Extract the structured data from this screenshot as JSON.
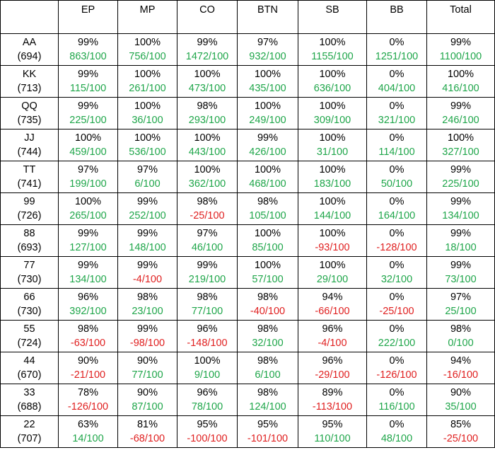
{
  "columns": [
    "",
    "EP",
    "MP",
    "CO",
    "BTN",
    "SB",
    "BB",
    "Total"
  ],
  "colors": {
    "positive": "#1fa64a",
    "negative": "#e02020",
    "text": "#000000"
  },
  "rows": [
    {
      "hand": "AA",
      "count": "(694)",
      "cells": [
        {
          "pct": "99%",
          "val": "863/100"
        },
        {
          "pct": "100%",
          "val": "756/100"
        },
        {
          "pct": "99%",
          "val": "1472/100"
        },
        {
          "pct": "97%",
          "val": "932/100"
        },
        {
          "pct": "100%",
          "val": "1155/100"
        },
        {
          "pct": "0%",
          "val": "1251/100"
        },
        {
          "pct": "99%",
          "val": "1100/100"
        }
      ]
    },
    {
      "hand": "KK",
      "count": "(713)",
      "cells": [
        {
          "pct": "99%",
          "val": "115/100"
        },
        {
          "pct": "100%",
          "val": "261/100"
        },
        {
          "pct": "100%",
          "val": "473/100"
        },
        {
          "pct": "100%",
          "val": "435/100"
        },
        {
          "pct": "100%",
          "val": "636/100"
        },
        {
          "pct": "0%",
          "val": "404/100"
        },
        {
          "pct": "100%",
          "val": "416/100"
        }
      ]
    },
    {
      "hand": "QQ",
      "count": "(735)",
      "cells": [
        {
          "pct": "99%",
          "val": "225/100"
        },
        {
          "pct": "100%",
          "val": "36/100"
        },
        {
          "pct": "98%",
          "val": "293/100"
        },
        {
          "pct": "100%",
          "val": "249/100"
        },
        {
          "pct": "100%",
          "val": "309/100"
        },
        {
          "pct": "0%",
          "val": "321/100"
        },
        {
          "pct": "99%",
          "val": "246/100"
        }
      ]
    },
    {
      "hand": "JJ",
      "count": "(744)",
      "cells": [
        {
          "pct": "100%",
          "val": "459/100"
        },
        {
          "pct": "100%",
          "val": "536/100"
        },
        {
          "pct": "100%",
          "val": "443/100"
        },
        {
          "pct": "99%",
          "val": "426/100"
        },
        {
          "pct": "100%",
          "val": "31/100"
        },
        {
          "pct": "0%",
          "val": "114/100"
        },
        {
          "pct": "100%",
          "val": "327/100"
        }
      ]
    },
    {
      "hand": "TT",
      "count": "(741)",
      "cells": [
        {
          "pct": "97%",
          "val": "199/100"
        },
        {
          "pct": "97%",
          "val": "6/100"
        },
        {
          "pct": "100%",
          "val": "362/100"
        },
        {
          "pct": "100%",
          "val": "468/100"
        },
        {
          "pct": "100%",
          "val": "183/100"
        },
        {
          "pct": "0%",
          "val": "50/100"
        },
        {
          "pct": "99%",
          "val": "225/100"
        }
      ]
    },
    {
      "hand": "99",
      "count": "(726)",
      "cells": [
        {
          "pct": "100%",
          "val": "265/100"
        },
        {
          "pct": "99%",
          "val": "252/100"
        },
        {
          "pct": "98%",
          "val": "-25/100"
        },
        {
          "pct": "98%",
          "val": "105/100"
        },
        {
          "pct": "100%",
          "val": "144/100"
        },
        {
          "pct": "0%",
          "val": "164/100"
        },
        {
          "pct": "99%",
          "val": "134/100"
        }
      ]
    },
    {
      "hand": "88",
      "count": "(693)",
      "cells": [
        {
          "pct": "99%",
          "val": "127/100"
        },
        {
          "pct": "99%",
          "val": "148/100"
        },
        {
          "pct": "97%",
          "val": "46/100"
        },
        {
          "pct": "100%",
          "val": "85/100"
        },
        {
          "pct": "100%",
          "val": "-93/100"
        },
        {
          "pct": "0%",
          "val": "-128/100"
        },
        {
          "pct": "99%",
          "val": "18/100"
        }
      ]
    },
    {
      "hand": "77",
      "count": "(730)",
      "cells": [
        {
          "pct": "99%",
          "val": "134/100"
        },
        {
          "pct": "99%",
          "val": "-4/100"
        },
        {
          "pct": "99%",
          "val": "219/100"
        },
        {
          "pct": "100%",
          "val": "57/100"
        },
        {
          "pct": "100%",
          "val": "29/100"
        },
        {
          "pct": "0%",
          "val": "32/100"
        },
        {
          "pct": "99%",
          "val": "73/100"
        }
      ]
    },
    {
      "hand": "66",
      "count": "(730)",
      "cells": [
        {
          "pct": "96%",
          "val": "392/100"
        },
        {
          "pct": "98%",
          "val": "23/100"
        },
        {
          "pct": "98%",
          "val": "77/100"
        },
        {
          "pct": "98%",
          "val": "-40/100"
        },
        {
          "pct": "94%",
          "val": "-66/100"
        },
        {
          "pct": "0%",
          "val": "-25/100"
        },
        {
          "pct": "97%",
          "val": "25/100"
        }
      ]
    },
    {
      "hand": "55",
      "count": "(724)",
      "cells": [
        {
          "pct": "98%",
          "val": "-63/100"
        },
        {
          "pct": "99%",
          "val": "-98/100"
        },
        {
          "pct": "96%",
          "val": "-148/100"
        },
        {
          "pct": "98%",
          "val": "32/100"
        },
        {
          "pct": "96%",
          "val": "-4/100"
        },
        {
          "pct": "0%",
          "val": "222/100"
        },
        {
          "pct": "98%",
          "val": "0/100"
        }
      ]
    },
    {
      "hand": "44",
      "count": "(670)",
      "cells": [
        {
          "pct": "90%",
          "val": "-21/100"
        },
        {
          "pct": "90%",
          "val": "77/100"
        },
        {
          "pct": "100%",
          "val": "9/100"
        },
        {
          "pct": "98%",
          "val": "6/100"
        },
        {
          "pct": "96%",
          "val": "-29/100"
        },
        {
          "pct": "0%",
          "val": "-126/100"
        },
        {
          "pct": "94%",
          "val": "-16/100"
        }
      ]
    },
    {
      "hand": "33",
      "count": "(688)",
      "cells": [
        {
          "pct": "78%",
          "val": "-126/100"
        },
        {
          "pct": "90%",
          "val": "87/100"
        },
        {
          "pct": "96%",
          "val": "78/100"
        },
        {
          "pct": "98%",
          "val": "124/100"
        },
        {
          "pct": "89%",
          "val": "-113/100"
        },
        {
          "pct": "0%",
          "val": "116/100"
        },
        {
          "pct": "90%",
          "val": "35/100"
        }
      ]
    },
    {
      "hand": "22",
      "count": "(707)",
      "cells": [
        {
          "pct": "63%",
          "val": "14/100"
        },
        {
          "pct": "81%",
          "val": "-68/100"
        },
        {
          "pct": "95%",
          "val": "-100/100"
        },
        {
          "pct": "95%",
          "val": "-101/100"
        },
        {
          "pct": "95%",
          "val": "110/100"
        },
        {
          "pct": "0%",
          "val": "48/100"
        },
        {
          "pct": "85%",
          "val": "-25/100"
        }
      ]
    }
  ]
}
